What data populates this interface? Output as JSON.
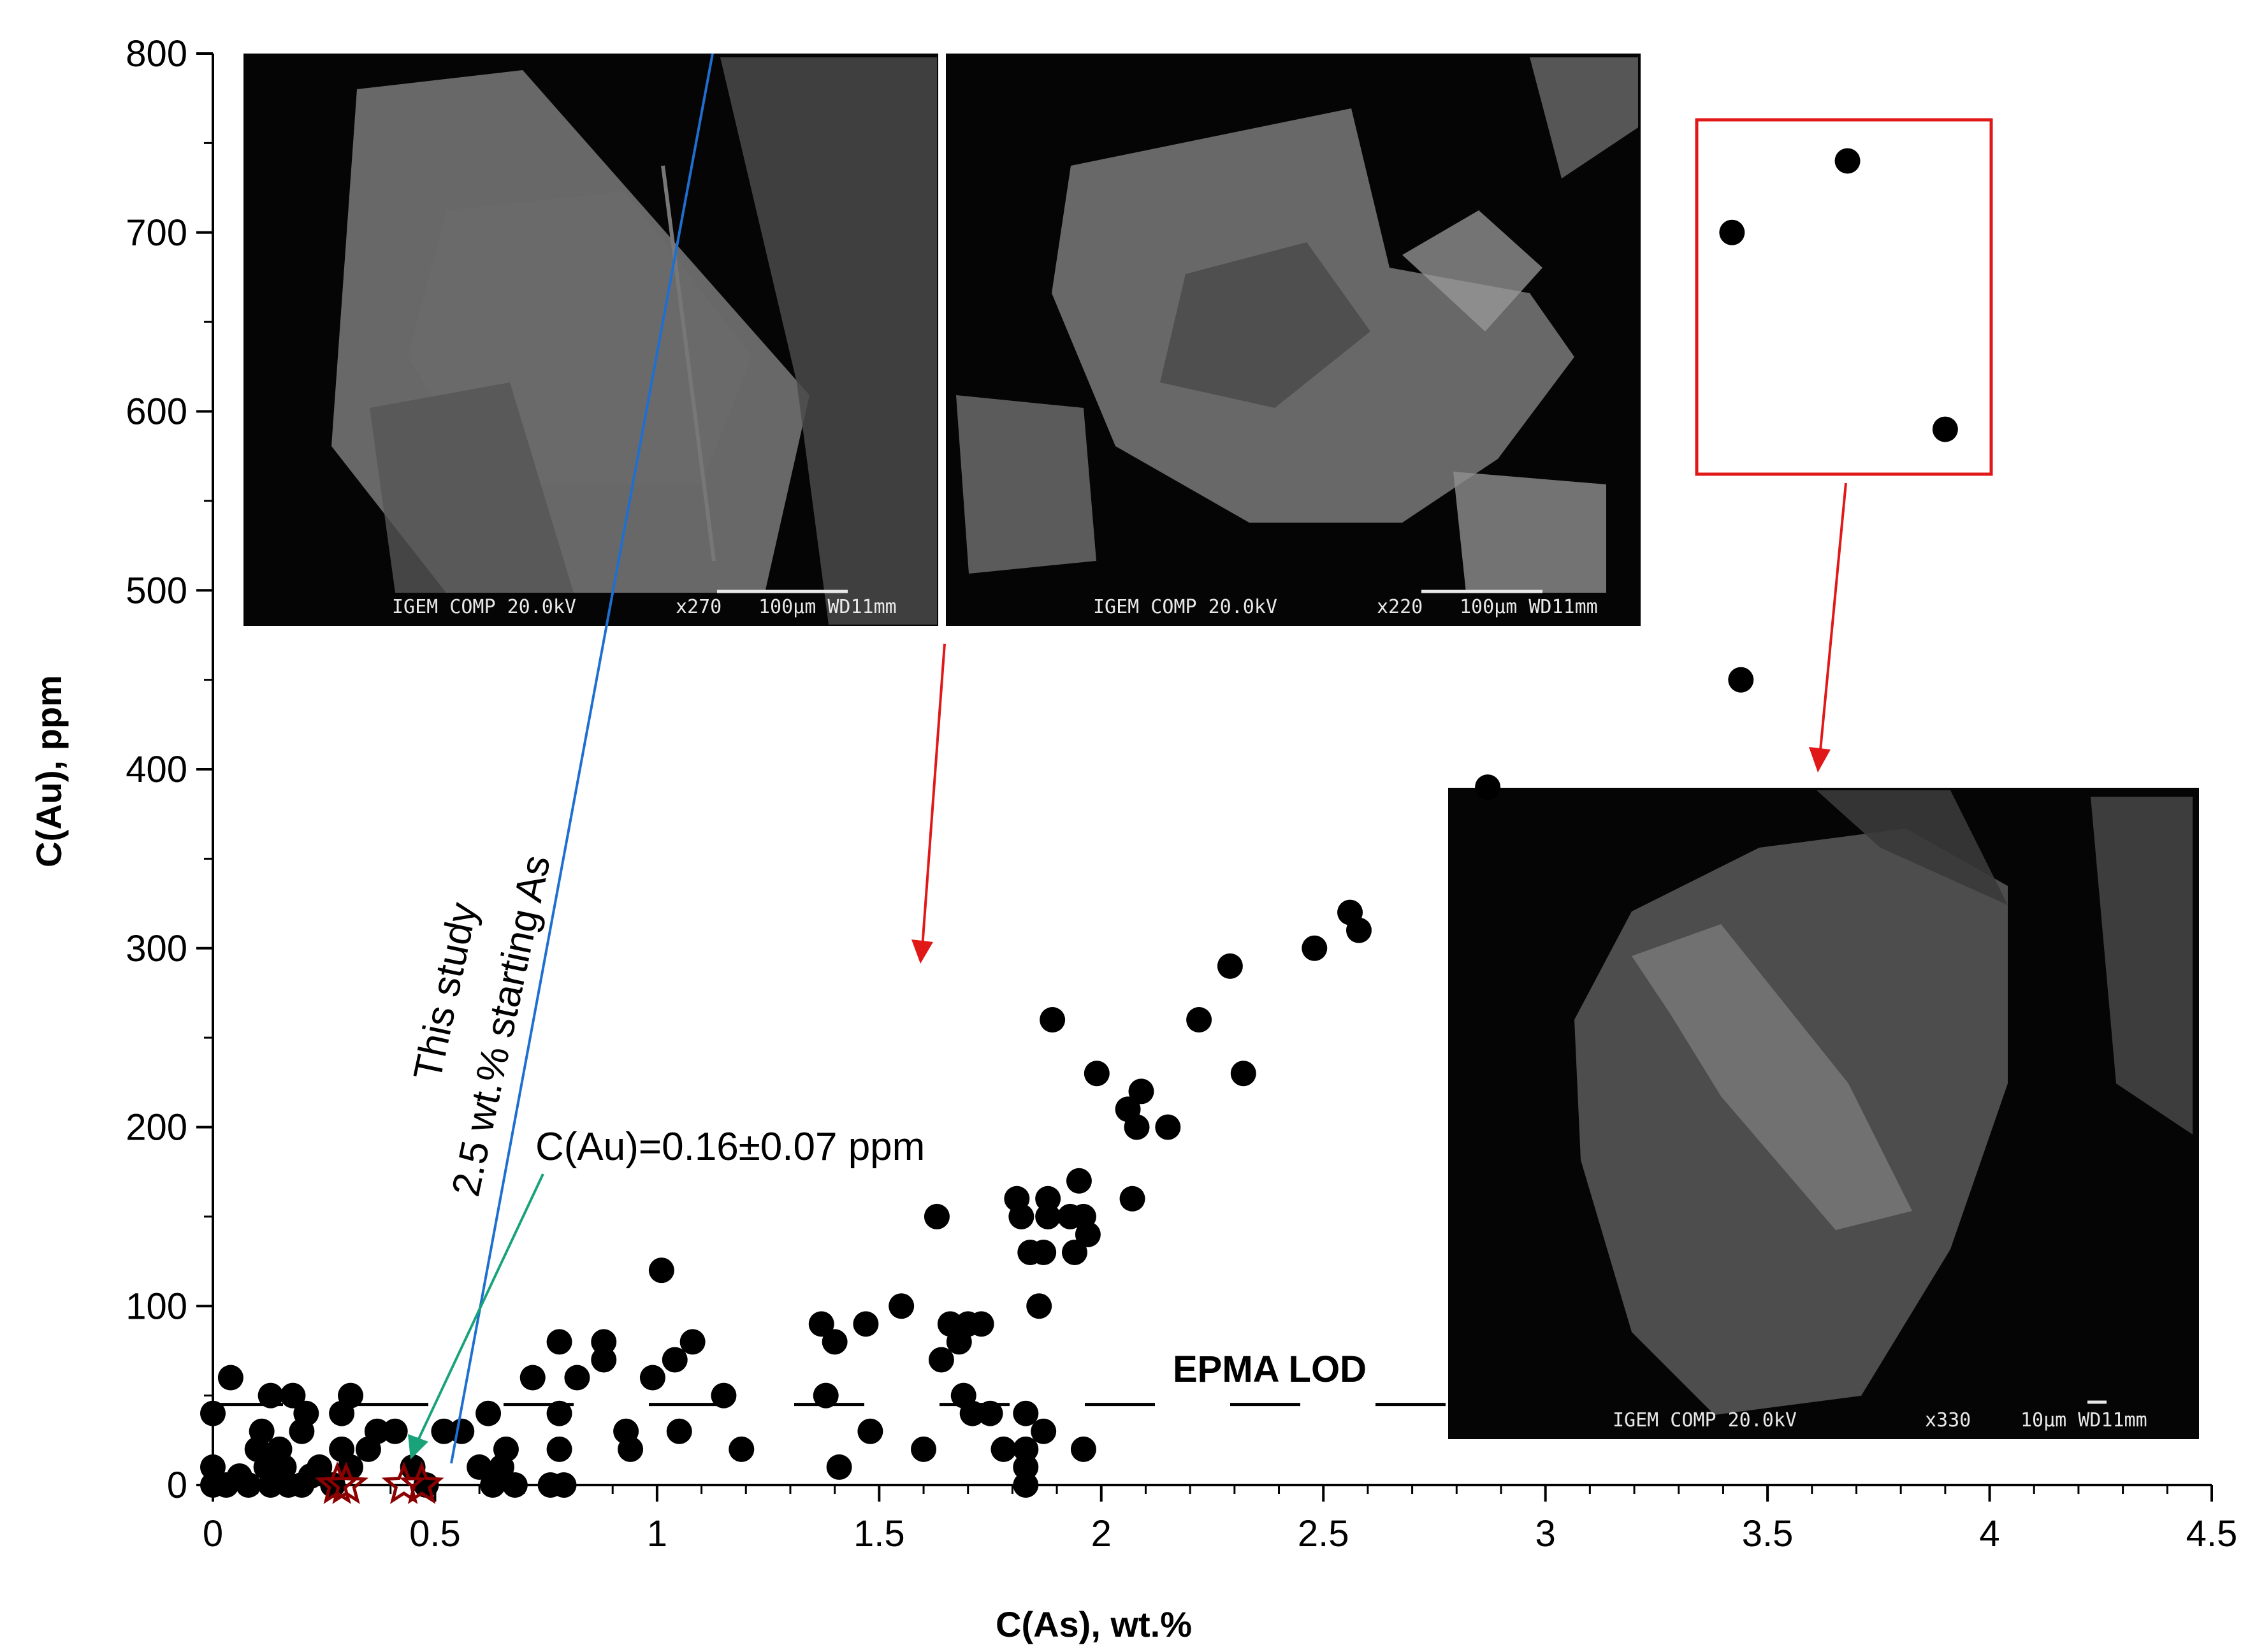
{
  "chart_data": {
    "type": "scatter",
    "title": "",
    "xlabel": "C(As), wt.%",
    "ylabel": "C(Au), ppm",
    "xlim": [
      0,
      4.5
    ],
    "ylim": [
      0,
      800
    ],
    "xticks": [
      "0",
      "0.5",
      "1",
      "1.5",
      "2",
      "2.5",
      "3",
      "3.5",
      "4",
      "4.5"
    ],
    "yticks": [
      "0",
      "100",
      "200",
      "300",
      "400",
      "500",
      "600",
      "700",
      "800"
    ],
    "grid": false,
    "series": [
      {
        "marker": "circle",
        "color": "#000000",
        "points": [
          [
            0,
            40
          ],
          [
            0,
            10
          ],
          [
            0,
            0
          ],
          [
            0.03,
            0
          ],
          [
            0.04,
            60
          ],
          [
            0.06,
            5
          ],
          [
            0.08,
            0
          ],
          [
            0.1,
            20
          ],
          [
            0.11,
            30
          ],
          [
            0.12,
            10
          ],
          [
            0.13,
            0
          ],
          [
            0.13,
            50
          ],
          [
            0.15,
            20
          ],
          [
            0.16,
            10
          ],
          [
            0.17,
            0
          ],
          [
            0.18,
            50
          ],
          [
            0.2,
            30
          ],
          [
            0.22,
            5
          ],
          [
            0.24,
            10
          ],
          [
            0.2,
            0
          ],
          [
            0.21,
            40
          ],
          [
            0.27,
            0
          ],
          [
            0.29,
            20
          ],
          [
            0.31,
            10
          ],
          [
            0.29,
            40
          ],
          [
            0.31,
            50
          ],
          [
            0.35,
            20
          ],
          [
            0.37,
            30
          ],
          [
            0.41,
            30
          ],
          [
            0.45,
            10
          ],
          [
            0.48,
            0
          ],
          [
            0.52,
            30
          ],
          [
            0.56,
            30
          ],
          [
            0.62,
            40
          ],
          [
            0.6,
            10
          ],
          [
            0.63,
            0
          ],
          [
            0.65,
            10
          ],
          [
            0.66,
            20
          ],
          [
            0.68,
            0
          ],
          [
            0.72,
            60
          ],
          [
            0.76,
            0
          ],
          [
            0.78,
            40
          ],
          [
            0.78,
            80
          ],
          [
            0.79,
            0
          ],
          [
            0.78,
            20
          ],
          [
            0.82,
            60
          ],
          [
            0.88,
            70
          ],
          [
            0.88,
            80
          ],
          [
            0.93,
            30
          ],
          [
            0.94,
            20
          ],
          [
            0.99,
            60
          ],
          [
            1.01,
            120
          ],
          [
            1.04,
            70
          ],
          [
            1.05,
            30
          ],
          [
            1.08,
            80
          ],
          [
            1.15,
            50
          ],
          [
            1.19,
            20
          ],
          [
            1.37,
            90
          ],
          [
            1.38,
            50
          ],
          [
            1.4,
            80
          ],
          [
            1.41,
            10
          ],
          [
            1.47,
            90
          ],
          [
            1.48,
            30
          ],
          [
            1.55,
            100
          ],
          [
            1.6,
            20
          ],
          [
            1.63,
            150
          ],
          [
            1.64,
            70
          ],
          [
            1.66,
            90
          ],
          [
            1.68,
            80
          ],
          [
            1.7,
            90
          ],
          [
            1.71,
            40
          ],
          [
            1.69,
            50
          ],
          [
            1.73,
            90
          ],
          [
            1.75,
            40
          ],
          [
            1.78,
            20
          ],
          [
            1.81,
            160
          ],
          [
            1.82,
            150
          ],
          [
            1.83,
            40
          ],
          [
            1.83,
            20
          ],
          [
            1.83,
            10
          ],
          [
            1.83,
            0
          ],
          [
            1.84,
            130
          ],
          [
            1.86,
            100
          ],
          [
            1.87,
            30
          ],
          [
            1.87,
            130
          ],
          [
            1.88,
            150
          ],
          [
            1.88,
            160
          ],
          [
            1.89,
            260
          ],
          [
            1.93,
            150
          ],
          [
            1.94,
            130
          ],
          [
            1.95,
            170
          ],
          [
            1.96,
            150
          ],
          [
            1.97,
            140
          ],
          [
            1.99,
            230
          ],
          [
            1.96,
            20
          ],
          [
            2.06,
            210
          ],
          [
            2.07,
            160
          ],
          [
            2.08,
            200
          ],
          [
            2.09,
            220
          ],
          [
            2.15,
            200
          ],
          [
            2.22,
            260
          ],
          [
            2.29,
            290
          ],
          [
            2.32,
            230
          ],
          [
            2.48,
            300
          ],
          [
            2.56,
            320
          ],
          [
            2.58,
            310
          ],
          [
            2.87,
            390
          ],
          [
            3.44,
            450
          ],
          [
            3.42,
            700
          ],
          [
            3.68,
            740
          ],
          [
            3.9,
            590
          ]
        ]
      },
      {
        "name": "This study",
        "marker": "star",
        "color": "#8b0000",
        "points": [
          [
            0.28,
            0
          ],
          [
            0.3,
            0
          ],
          [
            0.43,
            0
          ],
          [
            0.47,
            0
          ]
        ]
      }
    ],
    "lod_line": {
      "value": 45,
      "label": "EPMA LOD"
    },
    "annotations": {
      "study_line1": "This study",
      "study_line2": "2.5 wt.% starting As",
      "mean_value": "C(Au)=0.16±0.07 ppm",
      "lod_label": "EPMA LOD"
    },
    "sem_images": [
      {
        "caption_left": "IGEM COMP  20.0kV",
        "caption_mag": "x270",
        "caption_scale": "100μm WD11mm"
      },
      {
        "caption_left": "IGEM COMP  20.0kV",
        "caption_mag": "x220",
        "caption_scale": "100μm WD11mm"
      },
      {
        "caption_left": "IGEM COMP  20.0kV",
        "caption_mag": "x330",
        "caption_scale": "10μm WD11mm"
      }
    ],
    "colors": {
      "points": "#000000",
      "stars": "#8b0000",
      "arrow_blue": "#1f6fd1",
      "arrow_green": "#1aa37a",
      "arrow_red": "#e01818",
      "box_red": "#e01818"
    }
  }
}
